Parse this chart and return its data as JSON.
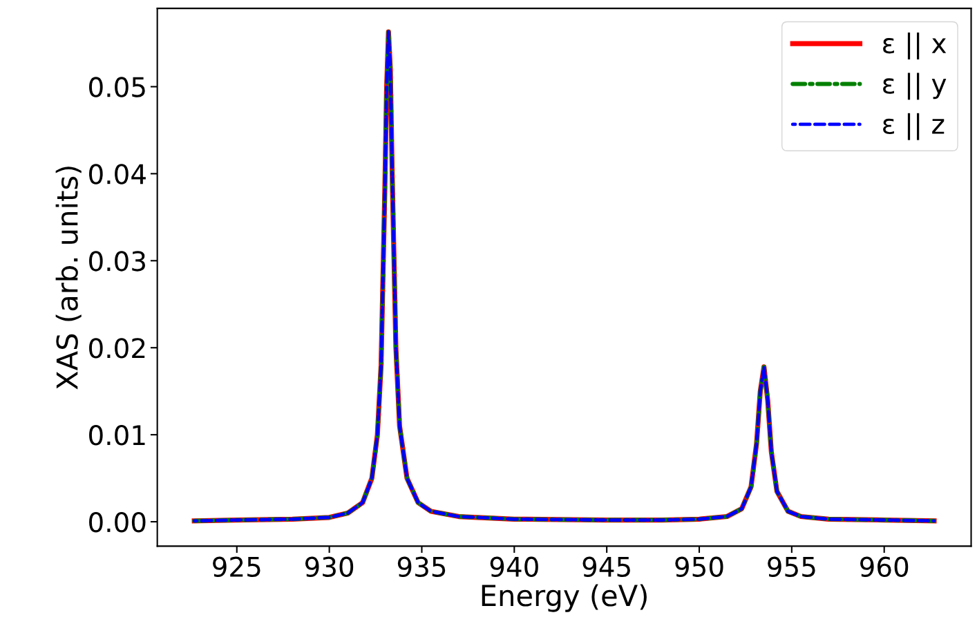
{
  "chart_data": {
    "type": "line",
    "xlabel": "Energy (eV)",
    "ylabel": "XAS (arb. units)",
    "xlim": [
      920.7,
      964.7
    ],
    "xticks": [
      925,
      930,
      935,
      940,
      945,
      950,
      955,
      960
    ],
    "ylim": [
      -0.0028,
      0.059
    ],
    "yticks": [
      {
        "value": 0,
        "label": "0.00"
      },
      {
        "value": 0.01,
        "label": "0.01"
      },
      {
        "value": 0.02,
        "label": "0.02"
      },
      {
        "value": 0.03,
        "label": "0.03"
      },
      {
        "value": 0.04,
        "label": "0.04"
      },
      {
        "value": 0.05,
        "label": "0.05"
      }
    ],
    "x": [
      922.7,
      925,
      928,
      930,
      931,
      931.8,
      932.3,
      932.6,
      932.8,
      933.0,
      933.1,
      933.2,
      933.3,
      933.4,
      933.6,
      933.8,
      934.2,
      934.8,
      935.5,
      937,
      940,
      945,
      948,
      950,
      951.5,
      952.3,
      952.8,
      953.1,
      953.3,
      953.5,
      953.7,
      953.9,
      954.2,
      954.8,
      955.5,
      957,
      960,
      962.7
    ],
    "series": [
      {
        "name": "ε || x",
        "color": "#ff0000",
        "line_style": "solid",
        "values": [
          0.0001,
          0.0002,
          0.0003,
          0.0005,
          0.001,
          0.0022,
          0.005,
          0.01,
          0.018,
          0.038,
          0.05,
          0.0563,
          0.052,
          0.04,
          0.02,
          0.011,
          0.005,
          0.0022,
          0.0012,
          0.0006,
          0.0003,
          0.0002,
          0.0002,
          0.0003,
          0.0006,
          0.0015,
          0.004,
          0.009,
          0.015,
          0.0178,
          0.014,
          0.008,
          0.0035,
          0.0012,
          0.0006,
          0.0003,
          0.0002,
          0.0001
        ]
      },
      {
        "name": "ε || y",
        "color": "#008000",
        "line_style": "dashdot",
        "values": [
          0.0001,
          0.0002,
          0.0003,
          0.0005,
          0.001,
          0.0022,
          0.005,
          0.01,
          0.018,
          0.038,
          0.05,
          0.0563,
          0.052,
          0.04,
          0.02,
          0.011,
          0.005,
          0.0022,
          0.0012,
          0.0006,
          0.0003,
          0.0002,
          0.0002,
          0.0003,
          0.0006,
          0.0015,
          0.004,
          0.009,
          0.015,
          0.0178,
          0.014,
          0.008,
          0.0035,
          0.0012,
          0.0006,
          0.0003,
          0.0002,
          0.0001
        ]
      },
      {
        "name": "ε || z",
        "color": "#0000ff",
        "line_style": "dashed",
        "values": [
          0.0001,
          0.0002,
          0.0003,
          0.0005,
          0.001,
          0.0022,
          0.005,
          0.01,
          0.018,
          0.038,
          0.05,
          0.0563,
          0.052,
          0.04,
          0.02,
          0.011,
          0.005,
          0.0022,
          0.0012,
          0.0006,
          0.0003,
          0.0002,
          0.0002,
          0.0003,
          0.0006,
          0.0015,
          0.004,
          0.009,
          0.015,
          0.0178,
          0.014,
          0.008,
          0.0035,
          0.0012,
          0.0006,
          0.0003,
          0.0002,
          0.0001
        ]
      }
    ],
    "legend": "top right",
    "grid": false,
    "marker": "none"
  }
}
